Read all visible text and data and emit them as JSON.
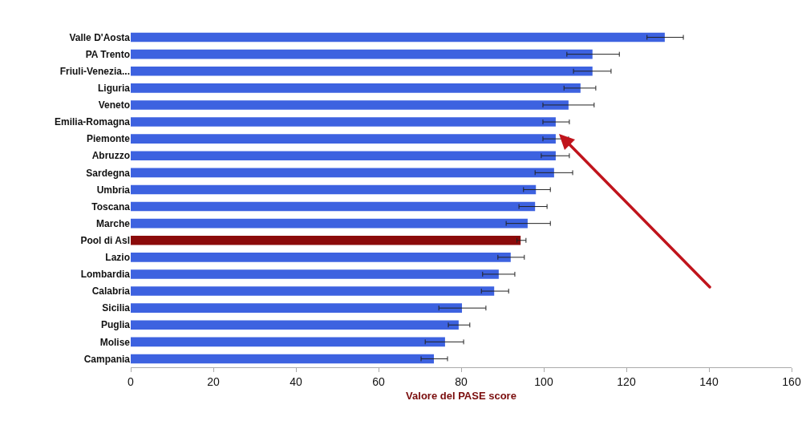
{
  "chart_data": {
    "type": "bar",
    "orientation": "horizontal",
    "xlabel": "Valore del PASE score",
    "categories": [
      "Valle D'Aosta",
      "PA Trento",
      "Friuli-Venezia...",
      "Liguria",
      "Veneto",
      "Emilia-Romagna",
      "Piemonte",
      "Abruzzo",
      "Sardegna",
      "Umbria",
      "Toscana",
      "Marche",
      "Pool di Asl",
      "Lazio",
      "Lombardia",
      "Calabria",
      "Sicilia",
      "Puglia",
      "Molise",
      "Campania"
    ],
    "values": [
      129.3,
      111.8,
      111.8,
      108.9,
      106.0,
      102.9,
      102.9,
      102.9,
      102.5,
      98.1,
      97.9,
      96.1,
      94.4,
      92.0,
      89.1,
      88.0,
      80.2,
      79.4,
      76.1,
      73.4
    ],
    "errors": [
      [
        125.0,
        133.8
      ],
      [
        105.6,
        118.3
      ],
      [
        107.2,
        116.3
      ],
      [
        104.9,
        112.6
      ],
      [
        99.8,
        112.2
      ],
      [
        99.8,
        106.2
      ],
      [
        99.8,
        106.0
      ],
      [
        99.4,
        106.2
      ],
      [
        97.9,
        107.0
      ],
      [
        95.1,
        101.6
      ],
      [
        94.0,
        100.8
      ],
      [
        90.9,
        101.6
      ],
      [
        93.5,
        95.7
      ],
      [
        88.9,
        95.3
      ],
      [
        85.2,
        93.0
      ],
      [
        84.9,
        91.5
      ],
      [
        74.6,
        86.0
      ],
      [
        76.9,
        82.1
      ],
      [
        71.3,
        80.6
      ],
      [
        70.3,
        76.7
      ]
    ],
    "colors": [
      "#3d62e0",
      "#3d62e0",
      "#3d62e0",
      "#3d62e0",
      "#3d62e0",
      "#3d62e0",
      "#3d62e0",
      "#3d62e0",
      "#3d62e0",
      "#3d62e0",
      "#3d62e0",
      "#3d62e0",
      "#8b0a0a",
      "#3d62e0",
      "#3d62e0",
      "#3d62e0",
      "#3d62e0",
      "#3d62e0",
      "#3d62e0",
      "#3d62e0"
    ],
    "xlim": [
      0,
      160
    ],
    "xticks": [
      0,
      20,
      40,
      60,
      80,
      100,
      120,
      140,
      160
    ]
  }
}
